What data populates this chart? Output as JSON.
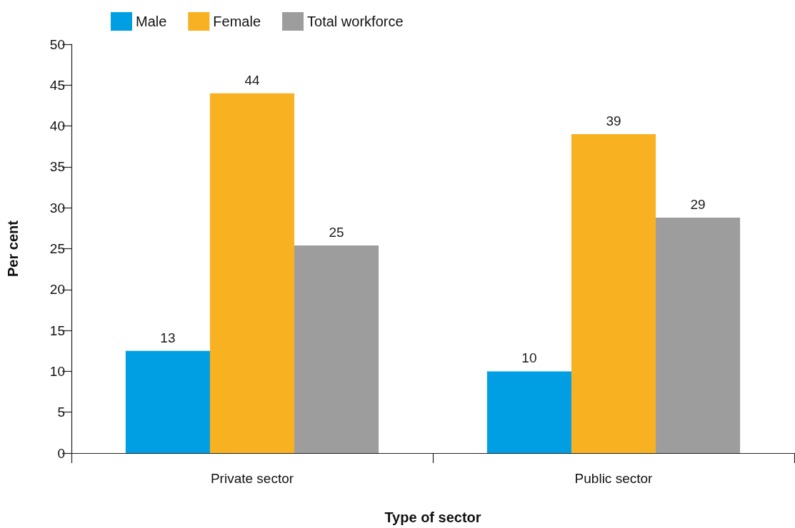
{
  "chart_data": {
    "type": "bar",
    "categories": [
      "Private sector",
      "Public sector"
    ],
    "series": [
      {
        "name": "Male",
        "color": "#009fe3",
        "values": [
          12.5,
          10
        ],
        "value_labels": [
          "13",
          "10"
        ]
      },
      {
        "name": "Female",
        "color": "#f8b121",
        "values": [
          44,
          39
        ],
        "value_labels": [
          "44",
          "39"
        ]
      },
      {
        "name": "Total workforce",
        "color": "#9d9d9d",
        "values": [
          25.4,
          28.8
        ],
        "value_labels": [
          "25",
          "29"
        ]
      }
    ],
    "xlabel": "Type of sector",
    "ylabel": "Per cent",
    "ylim": [
      0,
      50
    ],
    "yticks": [
      0,
      5,
      10,
      15,
      20,
      25,
      30,
      35,
      40,
      45,
      50
    ],
    "grid": false,
    "legend": "top"
  }
}
